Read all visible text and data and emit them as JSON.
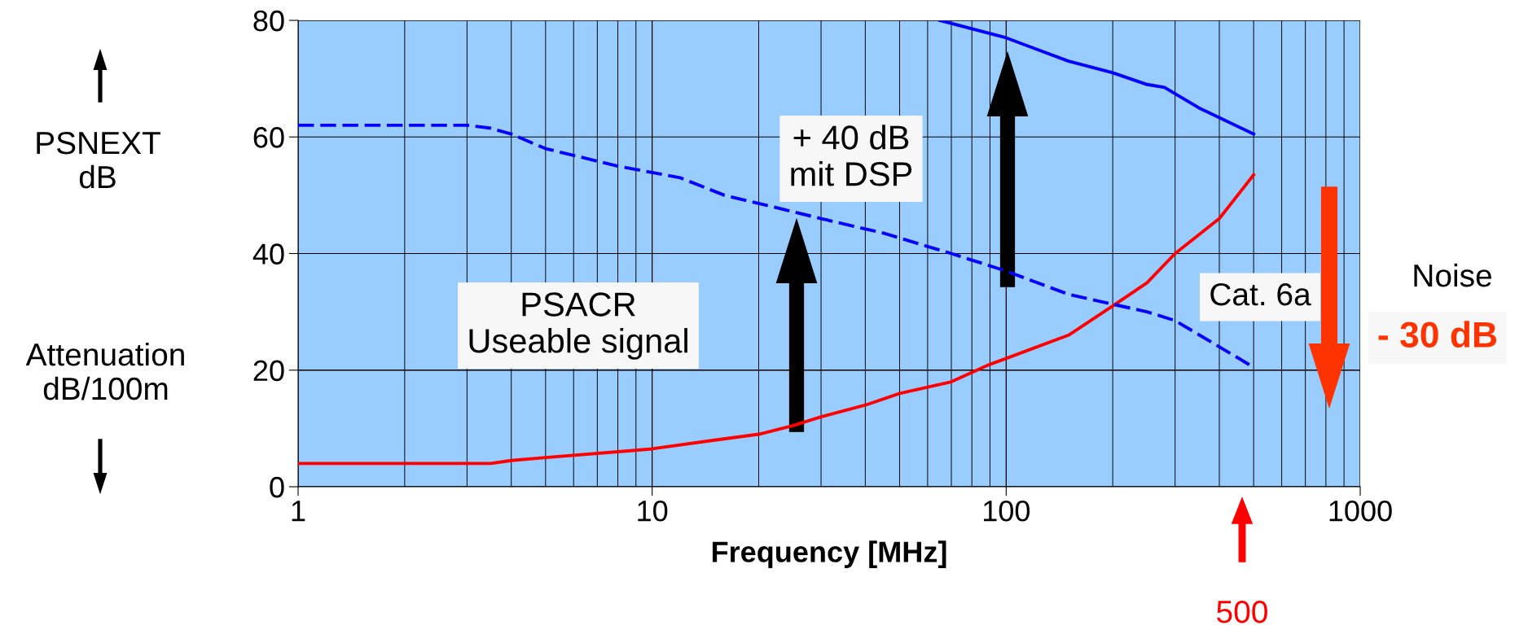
{
  "chart_data": {
    "type": "line",
    "xlabel": "Frequency [MHz]",
    "log": "x",
    "xlim": [
      1,
      1000
    ],
    "xticks": [
      1,
      10,
      100,
      1000
    ],
    "ylim": [
      0,
      80
    ],
    "yticks": [
      0,
      20,
      40,
      60,
      80
    ],
    "grid": true,
    "marker": "none",
    "series": [
      {
        "color": "#ff0000",
        "line_style": "solid",
        "x": [
          1,
          2,
          3,
          3.5,
          4,
          5,
          8,
          10,
          15,
          20,
          25,
          30,
          40,
          50,
          70,
          90,
          100,
          150,
          200,
          250,
          300,
          400,
          500
        ],
        "values": [
          4,
          4,
          4,
          4,
          4.5,
          5,
          6,
          6.5,
          8,
          9,
          10.5,
          12,
          14,
          16,
          18,
          21,
          22,
          26,
          31,
          35,
          40,
          46,
          53.5
        ]
      },
      {
        "color": "#0000ff",
        "line_style": "dashed",
        "x": [
          1,
          2,
          3,
          3.5,
          4,
          5,
          8,
          12,
          16,
          22,
          30,
          45,
          70,
          100,
          150,
          250,
          300,
          400,
          500
        ],
        "values": [
          62,
          62,
          62,
          61.5,
          60.5,
          58,
          55,
          53,
          50,
          48,
          46,
          43.5,
          40,
          37,
          33,
          30,
          28.5,
          24,
          20.5
        ]
      },
      {
        "color": "#0000ff",
        "line_style": "solid",
        "x": [
          65,
          100,
          150,
          200,
          250,
          280,
          350,
          500
        ],
        "values": [
          80,
          77,
          73,
          71,
          69,
          68.5,
          65,
          60.5
        ]
      }
    ],
    "annotations": [
      "PSNEXT\ndB",
      "Attenuation\ndB/100m",
      "PSACR\nUseable signal",
      "+ 40 dB\nmit DSP",
      "Cat. 6a",
      "Noise",
      "- 30 dB",
      "500"
    ]
  }
}
